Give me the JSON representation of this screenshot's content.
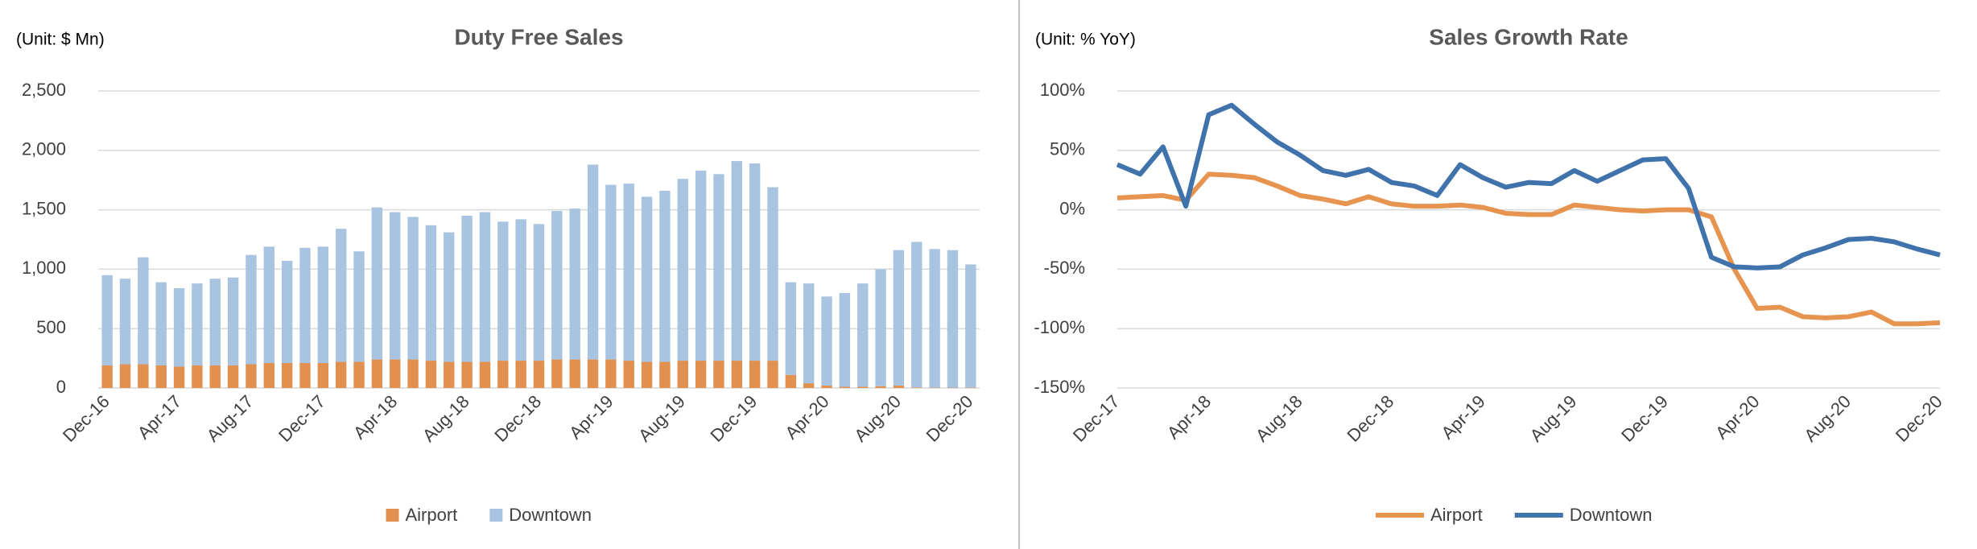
{
  "chart_data": [
    {
      "type": "bar",
      "stacked": true,
      "title": "Duty Free Sales",
      "y_label": "(Unit: $ Mn)",
      "categories": [
        "Dec-16",
        null,
        null,
        null,
        "Apr-17",
        null,
        null,
        null,
        "Aug-17",
        null,
        null,
        null,
        "Dec-17",
        null,
        null,
        null,
        "Apr-18",
        null,
        null,
        null,
        "Aug-18",
        null,
        null,
        null,
        "Dec-18",
        null,
        null,
        null,
        "Apr-19",
        null,
        null,
        null,
        "Aug-19",
        null,
        null,
        null,
        "Dec-19",
        null,
        null,
        null,
        "Apr-20",
        null,
        null,
        null,
        "Aug-20",
        null,
        null,
        null,
        "Dec-20"
      ],
      "series": [
        {
          "name": "Airport",
          "color": "#e2904f",
          "values": [
            190,
            200,
            200,
            190,
            180,
            190,
            190,
            190,
            200,
            210,
            210,
            210,
            210,
            220,
            220,
            240,
            240,
            240,
            230,
            220,
            220,
            220,
            230,
            230,
            230,
            240,
            240,
            240,
            240,
            230,
            220,
            220,
            230,
            230,
            230,
            230,
            230,
            230,
            110,
            40,
            20,
            10,
            10,
            15,
            20,
            5,
            3,
            3,
            3
          ]
        },
        {
          "name": "Downtown",
          "color": "#a9c4e0",
          "values": [
            760,
            720,
            900,
            700,
            660,
            690,
            730,
            740,
            920,
            980,
            860,
            970,
            980,
            1120,
            930,
            1280,
            1240,
            1200,
            1140,
            1090,
            1230,
            1260,
            1170,
            1190,
            1150,
            1250,
            1270,
            1640,
            1470,
            1490,
            1390,
            1440,
            1530,
            1600,
            1570,
            1680,
            1660,
            1460,
            780,
            840,
            750,
            790,
            870,
            985,
            1140,
            1225,
            1167,
            1157,
            1037
          ]
        }
      ],
      "ylim": [
        0,
        2500
      ],
      "yticks": [
        0,
        500,
        {
          "value": 1000,
          "label": "1,000"
        },
        {
          "value": 1500,
          "label": "1,500"
        },
        {
          "value": 2000,
          "label": "2,000"
        },
        {
          "value": 2500,
          "label": "2,500"
        }
      ],
      "grid": true,
      "legend": "bottom"
    },
    {
      "type": "line",
      "title": "Sales Growth Rate",
      "y_label": "(Unit: % YoY)",
      "categories": [
        "Dec-17",
        null,
        null,
        null,
        "Apr-18",
        null,
        null,
        null,
        "Aug-18",
        null,
        null,
        null,
        "Dec-18",
        null,
        null,
        null,
        "Apr-19",
        null,
        null,
        null,
        "Aug-19",
        null,
        null,
        null,
        "Dec-19",
        null,
        null,
        null,
        "Apr-20",
        null,
        null,
        null,
        "Aug-20",
        null,
        null,
        null,
        "Dec-20"
      ],
      "series": [
        {
          "name": "Airport",
          "color": "#e69450",
          "values": [
            10,
            11,
            12,
            8,
            30,
            29,
            27,
            20,
            12,
            9,
            5,
            11,
            5,
            3,
            3,
            4,
            2,
            -3,
            -4,
            -4,
            4,
            2,
            0,
            -1,
            0,
            0,
            -6,
            -50,
            -83,
            -82,
            -90,
            -91,
            -90,
            -86,
            -96,
            -96,
            -95
          ]
        },
        {
          "name": "Downtown",
          "color": "#4072ab",
          "values": [
            38,
            30,
            53,
            3,
            80,
            88,
            72,
            57,
            46,
            33,
            29,
            34,
            23,
            20,
            12,
            38,
            27,
            19,
            23,
            22,
            33,
            24,
            33,
            42,
            43,
            18,
            -40,
            -48,
            -49,
            -48,
            -38,
            -32,
            -25,
            -24,
            -27,
            -33,
            -38
          ]
        }
      ],
      "ylim": [
        -150,
        100
      ],
      "yticks": [
        {
          "value": -150,
          "label": "-150%"
        },
        {
          "value": -100,
          "label": "-100%"
        },
        {
          "value": -50,
          "label": "-50%"
        },
        {
          "value": 0,
          "label": "0%"
        },
        {
          "value": 50,
          "label": "50%"
        },
        {
          "value": 100,
          "label": "100%"
        }
      ],
      "grid": true,
      "legend": "bottom"
    }
  ]
}
